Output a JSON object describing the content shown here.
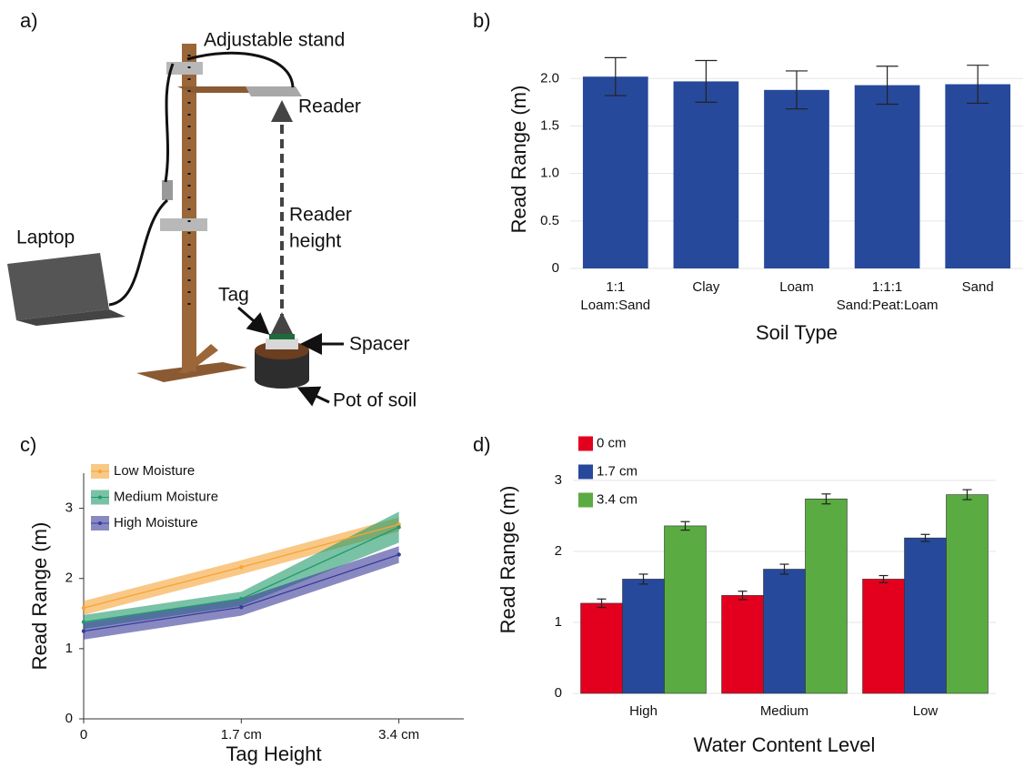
{
  "diagram": {
    "panel_label": "a)",
    "labels": {
      "stand": "Adjustable stand",
      "reader": "Reader",
      "height": [
        "Reader",
        "height"
      ],
      "laptop": "Laptop",
      "tag": "Tag",
      "spacer": "Spacer",
      "pot": "Pot of soil"
    }
  },
  "chart_data": [
    {
      "type": "bar",
      "panel_label": "b)",
      "y_label": "Read Range (m)",
      "x_label": "Soil Type",
      "categories": [
        [
          "1:1",
          "Loam:Sand"
        ],
        [
          "Clay"
        ],
        [
          "Loam"
        ],
        [
          "1:1:1",
          "Sand:Peat:Loam"
        ],
        [
          "Sand"
        ]
      ],
      "values": [
        2.02,
        1.97,
        1.88,
        1.93,
        1.94
      ],
      "errors": [
        0.2,
        0.22,
        0.2,
        0.2,
        0.2
      ],
      "color": "#27499b",
      "ylim": [
        0,
        2.3
      ],
      "yticks": [
        0,
        0.5,
        {
          "value": 1,
          "label": "1.0"
        },
        1.5,
        {
          "value": 2,
          "label": "2.0"
        }
      ],
      "grid": true
    },
    {
      "type": "line",
      "panel_label": "c)",
      "y_label": "Read Range (m)",
      "x_label": "Tag Height",
      "x": [
        0,
        1.7,
        3.4
      ],
      "series": [
        {
          "name": "Low Moisture",
          "color": "#f5a435",
          "values": [
            1.58,
            2.16,
            2.77
          ],
          "errors": [
            0.1,
            0.1,
            0.1
          ]
        },
        {
          "name": "Medium Moisture",
          "color": "#1f9a6a",
          "values": [
            1.38,
            1.71,
            2.73
          ],
          "errors": [
            0.1,
            0.1,
            0.22
          ]
        },
        {
          "name": "High Moisture",
          "color": "#3a3a99",
          "values": [
            1.25,
            1.59,
            2.34
          ],
          "errors": [
            0.12,
            0.12,
            0.12
          ]
        }
      ],
      "xlim": [
        0,
        4.1
      ],
      "xticks": [
        0,
        {
          "value": 1.7,
          "label": "1.7 cm"
        },
        {
          "value": 3.4,
          "label": "3.4 cm"
        }
      ],
      "ylim": [
        0,
        3.5
      ],
      "yticks": [
        0,
        1,
        2,
        3
      ],
      "legend": "top-left"
    },
    {
      "type": "grouped-bar",
      "panel_label": "d)",
      "y_label": "Read Range (m)",
      "x_label": "Water Content Level",
      "categories": [
        "High",
        "Medium",
        "Low"
      ],
      "series": [
        {
          "name": "0 cm",
          "color": "#e3001f",
          "values": [
            1.27,
            1.38,
            1.61
          ],
          "errors": [
            0.06,
            0.06,
            0.05
          ]
        },
        {
          "name": "1.7 cm",
          "color": "#27499b",
          "values": [
            1.61,
            1.75,
            2.19
          ],
          "errors": [
            0.07,
            0.07,
            0.05
          ]
        },
        {
          "name": "3.4 cm",
          "color": "#5aab41",
          "values": [
            2.36,
            2.74,
            2.8
          ],
          "errors": [
            0.06,
            0.07,
            0.07
          ]
        }
      ],
      "ylim": [
        0,
        3.75
      ],
      "yticks": [
        0,
        1,
        2,
        3
      ],
      "grid": true,
      "legend": "top-left"
    }
  ]
}
